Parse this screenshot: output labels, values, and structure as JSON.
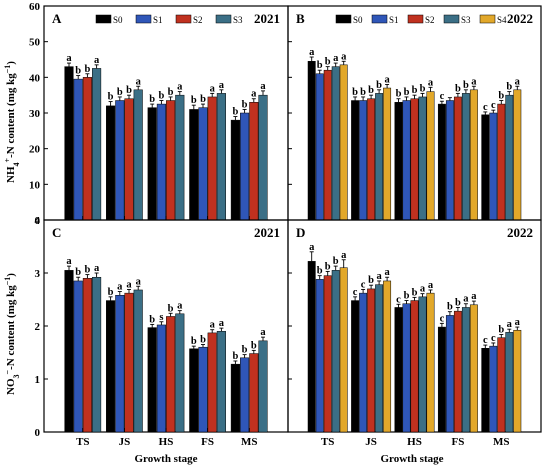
{
  "chart_data": {
    "type": "bar",
    "categories": [
      "TS",
      "JS",
      "HS",
      "FS",
      "MS"
    ],
    "xlabel": "Growth stage",
    "ylabel_top": "NH",
    "ylabel_top_sup": "4",
    "ylabel_top_sub": "+",
    "ylabel_top_rest": "-N content (mg kg",
    "ylabel_top_exp": "−1",
    "ylabel_bottom": "NO",
    "ylabel_bottom_sup": "3",
    "ylabel_bottom_sub": "−",
    "ylabel_bottom_rest": "-N content (mg kg",
    "ylabel_bottom_exp": "−1",
    "ylabel_close": ")",
    "ylim_top": [
      0,
      60
    ],
    "yticks_top": [
      "0",
      "10",
      "20",
      "30",
      "40",
      "50",
      "60"
    ],
    "ylim_bottom": [
      0,
      4
    ],
    "yticks_bottom": [
      "0",
      "1",
      "2",
      "3",
      "4"
    ],
    "series_colors": {
      "S0": "#000000",
      "S1": "#2f56b8",
      "S2": "#c0311f",
      "S3": "#3b6f86",
      "S4": "#e2a82a"
    },
    "panels": [
      {
        "id": "A",
        "year": "2021",
        "row": "top",
        "col": "left",
        "series": [
          {
            "name": "S0",
            "values": [
              43.0,
              32.0,
              31.5,
              31.0,
              28.0
            ],
            "errors": [
              1.0,
              1.2,
              1.0,
              1.2,
              1.0
            ],
            "letters": [
              "a",
              "b",
              "b",
              "b",
              "b"
            ]
          },
          {
            "name": "S1",
            "values": [
              39.5,
              33.5,
              32.5,
              31.5,
              30.0
            ],
            "errors": [
              1.0,
              1.0,
              1.0,
              1.0,
              1.0
            ],
            "letters": [
              "b",
              "b",
              "b",
              "b",
              "b"
            ]
          },
          {
            "name": "S2",
            "values": [
              40.0,
              34.0,
              33.5,
              34.5,
              33.0
            ],
            "errors": [
              1.0,
              1.0,
              1.0,
              1.0,
              1.0
            ],
            "letters": [
              "b",
              "b",
              "b",
              "a",
              "a"
            ]
          },
          {
            "name": "S3",
            "values": [
              42.5,
              36.5,
              35.0,
              35.5,
              35.0
            ],
            "errors": [
              1.0,
              1.0,
              1.0,
              1.0,
              1.2
            ],
            "letters": [
              "a",
              "a",
              "a",
              "a",
              "a"
            ]
          }
        ]
      },
      {
        "id": "B",
        "year": "2022",
        "row": "top",
        "col": "right",
        "series": [
          {
            "name": "S0",
            "values": [
              44.5,
              33.5,
              33.0,
              32.5,
              29.5
            ],
            "errors": [
              1.2,
              1.0,
              1.0,
              0.8,
              0.8
            ],
            "letters": [
              "a",
              "b",
              "b",
              "c",
              "c"
            ]
          },
          {
            "name": "S1",
            "values": [
              41.0,
              33.5,
              33.5,
              33.5,
              30.0
            ],
            "errors": [
              1.0,
              1.0,
              1.0,
              0.8,
              0.8
            ],
            "letters": [
              "b",
              "b",
              "b",
              "",
              "c"
            ]
          },
          {
            "name": "S2",
            "values": [
              42.0,
              34.0,
              34.0,
              34.5,
              32.5
            ],
            "errors": [
              1.0,
              1.0,
              1.0,
              1.0,
              1.0
            ],
            "letters": [
              "b",
              "b",
              "b",
              "b",
              "b"
            ]
          },
          {
            "name": "S3",
            "values": [
              43.0,
              35.5,
              34.5,
              35.5,
              35.0
            ],
            "errors": [
              1.0,
              1.0,
              1.0,
              1.0,
              1.0
            ],
            "letters": [
              "a",
              "b",
              "b",
              "b",
              "b"
            ]
          },
          {
            "name": "S4",
            "values": [
              43.5,
              37.0,
              36.0,
              36.5,
              36.5
            ],
            "errors": [
              1.0,
              1.0,
              1.2,
              1.0,
              1.0
            ],
            "letters": [
              "a",
              "a",
              "a",
              "a",
              "a"
            ]
          }
        ]
      },
      {
        "id": "C",
        "year": "2021",
        "row": "bottom",
        "col": "left",
        "series": [
          {
            "name": "S0",
            "values": [
              3.05,
              2.48,
              1.97,
              1.57,
              1.28
            ],
            "errors": [
              0.08,
              0.07,
              0.06,
              0.05,
              0.06
            ],
            "letters": [
              "a",
              "b",
              "b",
              "b",
              "b"
            ]
          },
          {
            "name": "S1",
            "values": [
              2.85,
              2.58,
              2.02,
              1.6,
              1.4
            ],
            "errors": [
              0.07,
              0.07,
              0.06,
              0.05,
              0.06
            ],
            "letters": [
              "b",
              "a",
              "s",
              "b",
              "b"
            ]
          },
          {
            "name": "S2",
            "values": [
              2.9,
              2.62,
              2.18,
              1.87,
              1.48
            ],
            "errors": [
              0.07,
              0.07,
              0.06,
              0.06,
              0.06
            ],
            "letters": [
              "b",
              "a",
              "b",
              "a",
              "b"
            ]
          },
          {
            "name": "S3",
            "values": [
              2.92,
              2.68,
              2.23,
              1.9,
              1.72
            ],
            "errors": [
              0.08,
              0.07,
              0.06,
              0.06,
              0.07
            ],
            "letters": [
              "a",
              "a",
              "a",
              "a",
              "a"
            ]
          }
        ]
      },
      {
        "id": "D",
        "year": "2022",
        "row": "bottom",
        "col": "right",
        "series": [
          {
            "name": "S0",
            "values": [
              3.22,
              2.48,
              2.35,
              1.98,
              1.58
            ],
            "errors": [
              0.18,
              0.07,
              0.06,
              0.07,
              0.06
            ],
            "letters": [
              "a",
              "c",
              "c",
              "c",
              "c"
            ]
          },
          {
            "name": "S1",
            "values": [
              2.88,
              2.62,
              2.42,
              2.2,
              1.62
            ],
            "errors": [
              0.07,
              0.07,
              0.06,
              0.07,
              0.06
            ],
            "letters": [
              "b",
              "c",
              "b",
              "b",
              "c"
            ]
          },
          {
            "name": "S2",
            "values": [
              2.95,
              2.7,
              2.48,
              2.28,
              1.78
            ],
            "errors": [
              0.08,
              0.07,
              0.06,
              0.07,
              0.06
            ],
            "letters": [
              "b",
              "b",
              "b",
              "b",
              "b"
            ]
          },
          {
            "name": "S3",
            "values": [
              3.05,
              2.78,
              2.55,
              2.35,
              1.88
            ],
            "errors": [
              0.08,
              0.07,
              0.06,
              0.07,
              0.06
            ],
            "letters": [
              "b",
              "a",
              "a",
              "a",
              "a"
            ]
          },
          {
            "name": "S4",
            "values": [
              3.1,
              2.85,
              2.62,
              2.4,
              1.92
            ],
            "errors": [
              0.15,
              0.07,
              0.06,
              0.07,
              0.06
            ],
            "letters": [
              "a",
              "a",
              "a",
              "a",
              "a"
            ]
          }
        ]
      }
    ]
  }
}
